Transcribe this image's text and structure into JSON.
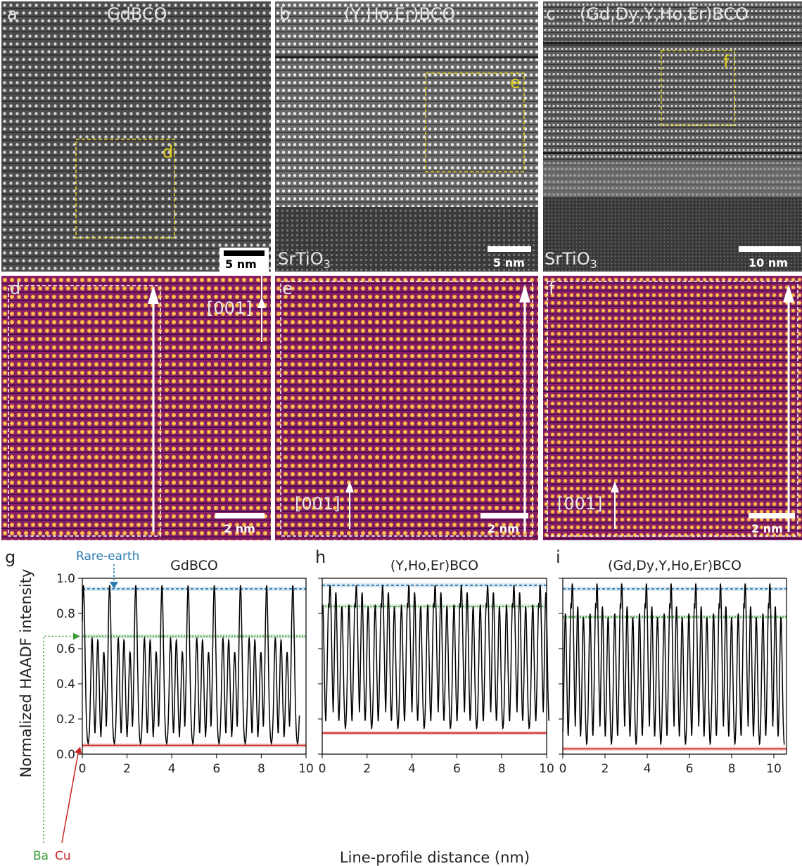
{
  "top_row": [
    {
      "letter": "a",
      "title": "GdBCO",
      "substrate": "",
      "scale_label": "5 nm",
      "box_letter": "d"
    },
    {
      "letter": "b",
      "title": "(Y,Ho,Er)BCO",
      "substrate": "SrTiO",
      "substrate_sub": "3",
      "scale_label": "5 nm",
      "box_letter": "e"
    },
    {
      "letter": "c",
      "title": "(Gd,Dy,Y,Ho,Er)BCO",
      "substrate": "SrTiO",
      "substrate_sub": "3",
      "scale_label": "10 nm",
      "box_letter": "f"
    }
  ],
  "middle_row": [
    {
      "letter": "d",
      "direction": "[001]",
      "scale_label": "2 nm"
    },
    {
      "letter": "e",
      "direction": "[001]",
      "scale_label": "2 nm"
    },
    {
      "letter": "f",
      "direction": "[001]",
      "scale_label": "2 nm"
    }
  ],
  "colors": {
    "rare_earth": "#2a7ab0",
    "ba": "#3a9a3a",
    "cu": "#cc2222",
    "profile": "#000000"
  },
  "chart_data": [
    {
      "panel": "g",
      "type": "line",
      "title": "GdBCO",
      "xlabel": "Line-profile distance (nm)",
      "ylabel": "Normalized HAADF intensity",
      "xlim": [
        0,
        10
      ],
      "ylim": [
        0,
        1.0
      ],
      "xticks": [
        0,
        2,
        4,
        6,
        8,
        10
      ],
      "yticks": [
        0.0,
        0.2,
        0.4,
        0.6,
        0.8,
        1.0
      ],
      "x_end": 9.7,
      "period": 1.17,
      "start": 0.05,
      "peaks": [
        {
          "off": 0.0,
          "h": 0.96,
          "w": 0.07
        },
        {
          "off": 0.33,
          "h": 0.66,
          "w": 0.06
        },
        {
          "off": 0.55,
          "h": 0.65,
          "w": 0.06
        },
        {
          "off": 0.78,
          "h": 0.58,
          "w": 0.06
        },
        {
          "off": 0.98,
          "h": 0.64,
          "w": 0.06
        }
      ],
      "baseline": 0.05,
      "levels": {
        "rare_earth": 0.94,
        "ba": 0.67,
        "cu": 0.05
      },
      "annotations": {
        "rare_earth": "Rare-earth",
        "ba": "Ba",
        "cu": "Cu"
      }
    },
    {
      "panel": "h",
      "type": "line",
      "title": "(Y,Ho,Er)BCO",
      "xlim": [
        0,
        10
      ],
      "ylim": [
        0,
        1.0
      ],
      "xticks": [
        0,
        2,
        4,
        6,
        8,
        10
      ],
      "x_end": 10.1,
      "period": 1.17,
      "start": 0.35,
      "peaks": [
        {
          "off": 0.0,
          "h": 0.96,
          "w": 0.07
        },
        {
          "off": 0.22,
          "h": 0.92,
          "w": 0.06
        },
        {
          "off": 0.45,
          "h": 0.84,
          "w": 0.06
        },
        {
          "off": 0.72,
          "h": 0.85,
          "w": 0.06
        },
        {
          "off": 0.95,
          "h": 0.86,
          "w": 0.06
        }
      ],
      "baseline": 0.12,
      "levels": {
        "rare_earth": 0.96,
        "ba": 0.84,
        "cu": 0.12
      }
    },
    {
      "panel": "i",
      "type": "line",
      "title": "(Gd,Dy,Y,Ho,Er)BCO",
      "xlim": [
        0,
        10.6
      ],
      "ylim": [
        0,
        1.0
      ],
      "xticks": [
        0,
        2,
        4,
        6,
        8,
        10
      ],
      "x_end": 10.5,
      "period": 1.17,
      "start": 0.45,
      "peaks": [
        {
          "off": 0.0,
          "h": 0.97,
          "w": 0.07
        },
        {
          "off": 0.22,
          "h": 0.84,
          "w": 0.06
        },
        {
          "off": 0.45,
          "h": 0.78,
          "w": 0.06
        },
        {
          "off": 0.72,
          "h": 0.8,
          "w": 0.06
        },
        {
          "off": 0.95,
          "h": 0.86,
          "w": 0.06
        }
      ],
      "baseline": 0.03,
      "levels": {
        "rare_earth": 0.94,
        "ba": 0.78,
        "cu": 0.03
      }
    }
  ]
}
